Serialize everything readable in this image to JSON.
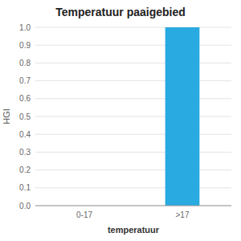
{
  "chart_data": {
    "type": "bar",
    "title": "Temperatuur paaigebied",
    "xlabel": "temperatuur",
    "ylabel": "HGI",
    "categories": [
      "0-17",
      ">17"
    ],
    "values": [
      0.0,
      1.0
    ],
    "color": "#29aae1",
    "ylim": [
      0.0,
      1.0
    ],
    "yticks": [
      {
        "value": 0.0,
        "label": "0.0"
      },
      0.1,
      0.2,
      0.3,
      0.4,
      0.5,
      0.6,
      0.7,
      0.8,
      0.9,
      {
        "value": 1.0,
        "label": "1.0"
      }
    ],
    "grid": true
  }
}
